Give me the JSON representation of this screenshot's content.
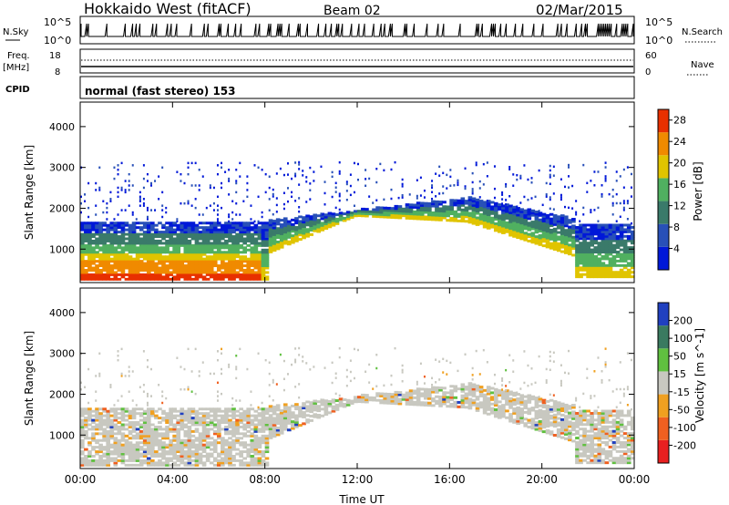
{
  "header": {
    "title": "Hokkaido West (fitACF)",
    "beam": "Beam 02",
    "date": "02/Mar/2015"
  },
  "noise_panel": {
    "left_label": "N.Sky",
    "right_label": "N.Search",
    "ymin_label": "10^0",
    "ymax_label": "10^5",
    "right_ymin_label": "10^0",
    "right_ymax_label": "10^5"
  },
  "freq_panel": {
    "left_label_line1": "Freq.",
    "left_label_line2": "[MHz]",
    "right_label": "Nave",
    "left_ticks": [
      "18",
      "8"
    ],
    "right_ticks": [
      "60",
      "0"
    ]
  },
  "cpid_panel": {
    "left_label": "CPID",
    "program": "normal (fast stereo) 153"
  },
  "colors": {
    "power": [
      "#0018d8",
      "#2850b8",
      "#3a7a6a",
      "#50b060",
      "#e0c400",
      "#f08a00",
      "#e83000"
    ],
    "velocity": [
      "#e82020",
      "#f06020",
      "#f0a020",
      "#c8c8c0",
      "#60c040",
      "#3a7a60",
      "#2040c0"
    ]
  },
  "chart_data": [
    {
      "type": "heatmap",
      "title": "",
      "xlabel": "Time UT",
      "ylabel": "Slant Range [km]",
      "xticks": [
        "00:00",
        "04:00",
        "08:00",
        "12:00",
        "16:00",
        "20:00",
        "00:00"
      ],
      "x_range_hours": [
        0,
        24
      ],
      "ylim": [
        180,
        4600
      ],
      "yticks": [
        1000,
        2000,
        3000,
        4000
      ],
      "colorbar": {
        "label": "Power [dB]",
        "ticks": [
          4,
          8,
          12,
          16,
          20,
          24,
          28
        ],
        "range": [
          0,
          30
        ]
      }
    },
    {
      "type": "heatmap",
      "title": "",
      "xlabel": "Time UT",
      "ylabel": "Slant Range [km]",
      "xticks": [
        "00:00",
        "04:00",
        "08:00",
        "12:00",
        "16:00",
        "20:00",
        "00:00"
      ],
      "x_range_hours": [
        0,
        24
      ],
      "ylim": [
        180,
        4600
      ],
      "yticks": [
        1000,
        2000,
        3000,
        4000
      ],
      "colorbar": {
        "label": "Velocity [m s^-1]",
        "ticks": [
          200,
          100,
          50,
          15,
          -15,
          -50,
          -100,
          -200
        ]
      }
    }
  ]
}
